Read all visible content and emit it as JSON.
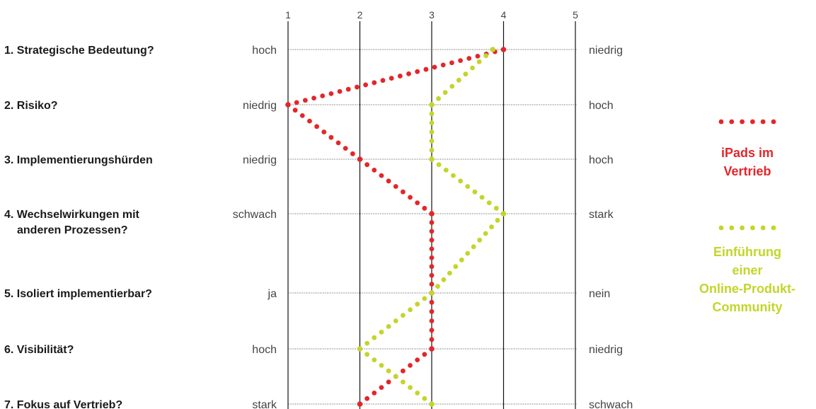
{
  "chart_data": {
    "type": "line",
    "x_ticks": [
      "1",
      "2",
      "3",
      "4",
      "5"
    ],
    "xlim": [
      1,
      5
    ],
    "grid": true,
    "legend_position": "right",
    "rows": [
      {
        "question": "1. Strategische Bedeutung?",
        "left": "hoch",
        "right": "niedrig"
      },
      {
        "question": [
          "2. Risiko?"
        ],
        "left": "niedrig",
        "right": "hoch"
      },
      {
        "question": [
          "3. Implementierungshürden"
        ],
        "left": "niedrig",
        "right": "hoch"
      },
      {
        "question": [
          "4. Wechselwirkungen mit",
          "anderen Prozessen?"
        ],
        "left": "schwach",
        "right": "stark"
      },
      {
        "question": [
          "5. Isoliert implementierbar?"
        ],
        "left": "ja",
        "right": "nein"
      },
      {
        "question": [
          "6. Visibilität?"
        ],
        "left": "hoch",
        "right": "niedrig"
      },
      {
        "question": [
          "7. Fokus auf Vertrieb?"
        ],
        "left": "stark",
        "right": "schwach"
      }
    ],
    "series": [
      {
        "name": [
          "iPads im",
          "Vertrieb"
        ],
        "color": "#e3262a",
        "values": [
          4,
          1,
          2,
          3,
          3,
          3,
          2
        ]
      },
      {
        "name": [
          "Einführung",
          "einer",
          "Online-Produkt-",
          "Community"
        ],
        "color": "#c3d52a",
        "values": [
          3.85,
          3,
          3,
          4,
          3,
          2,
          3
        ]
      }
    ]
  }
}
